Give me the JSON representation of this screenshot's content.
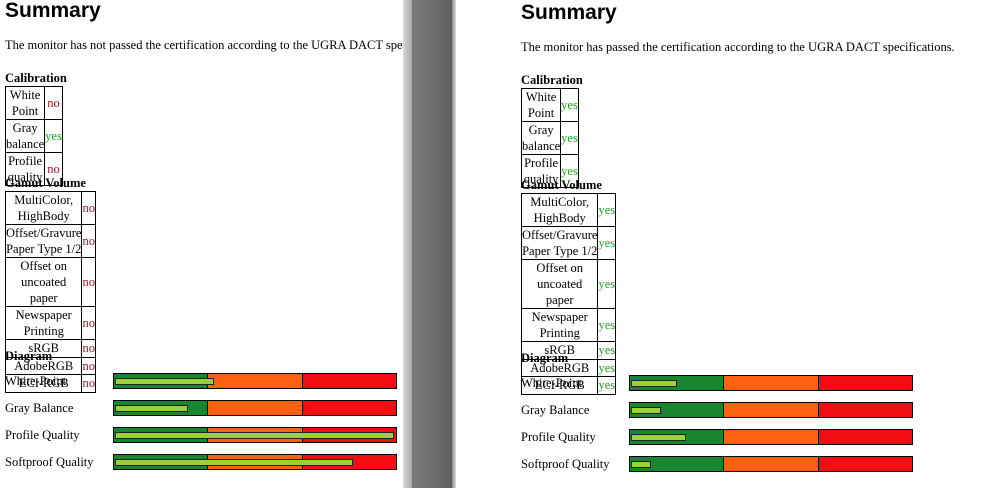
{
  "left": {
    "title": "Summary",
    "statement": "The monitor has not passed the certification according to the UGRA DACT specifications.",
    "calibration": {
      "heading": "Calibration",
      "rows": [
        {
          "label": "White Point",
          "value": "no",
          "status": "no"
        },
        {
          "label": "Gray balance",
          "value": "yes",
          "status": "yes"
        },
        {
          "label": "Profile quality",
          "value": "no",
          "status": "no"
        }
      ]
    },
    "gamut": {
      "heading": "Gamut Volume",
      "rows": [
        {
          "label": "MultiColor, HighBody",
          "value": "no",
          "status": "no"
        },
        {
          "label": "Offset/Gravure Paper Type 1/2",
          "value": "no",
          "status": "no"
        },
        {
          "label": "Offset on uncoated paper",
          "value": "no",
          "status": "no"
        },
        {
          "label": "Newspaper Printing",
          "value": "no",
          "status": "no"
        },
        {
          "label": "sRGB",
          "value": "no",
          "status": "no"
        },
        {
          "label": "AdobeRGB",
          "value": "no",
          "status": "no"
        },
        {
          "label": "ECI-RGB",
          "value": "no",
          "status": "no"
        }
      ]
    },
    "diagram": {
      "heading": "Diagram",
      "rows": [
        {
          "label": "White-Point",
          "level": 0.35
        },
        {
          "label": "Gray Balance",
          "level": 0.255
        },
        {
          "label": "Profile Quality",
          "level": 0.995
        },
        {
          "label": "Softproof Quality",
          "level": 0.85
        }
      ]
    }
  },
  "right": {
    "title": "Summary",
    "statement": "The monitor has passed the certification according to the UGRA DACT specifications.",
    "calibration": {
      "heading": "Calibration",
      "rows": [
        {
          "label": "White Point",
          "value": "yes",
          "status": "yes"
        },
        {
          "label": "Gray balance",
          "value": "yes",
          "status": "yes"
        },
        {
          "label": "Profile quality",
          "value": "yes",
          "status": "yes"
        }
      ]
    },
    "gamut": {
      "heading": "Gamut Volume",
      "rows": [
        {
          "label": "MultiColor, HighBody",
          "value": "yes",
          "status": "yes"
        },
        {
          "label": "Offset/Gravure Paper Type 1/2",
          "value": "yes",
          "status": "yes"
        },
        {
          "label": "Offset on uncoated paper",
          "value": "yes",
          "status": "yes"
        },
        {
          "label": "Newspaper Printing",
          "value": "yes",
          "status": "yes"
        },
        {
          "label": "sRGB",
          "value": "yes",
          "status": "yes"
        },
        {
          "label": "AdobeRGB",
          "value": "yes",
          "status": "yes"
        },
        {
          "label": "ECI-RGB",
          "value": "yes",
          "status": "yes"
        }
      ]
    },
    "diagram": {
      "heading": "Diagram",
      "rows": [
        {
          "label": "White-Point",
          "level": 0.16
        },
        {
          "label": "Gray Balance",
          "level": 0.1
        },
        {
          "label": "Profile Quality",
          "level": 0.19
        },
        {
          "label": "Softproof Quality",
          "level": 0.065
        }
      ]
    }
  },
  "colors": {
    "pass": "#1ea51e",
    "fail": "#a11228",
    "zone_green": "#18862e",
    "zone_orange": "#ff6111",
    "zone_red": "#f20d12",
    "level_fill": "#9ad03a"
  }
}
